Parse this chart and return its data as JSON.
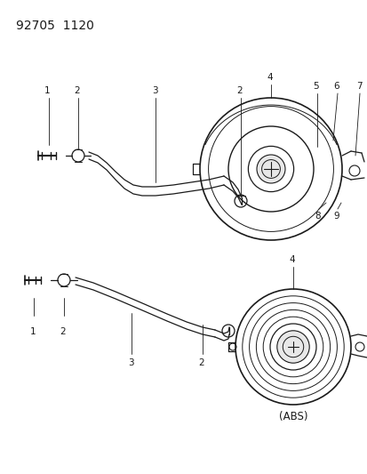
{
  "title_text": "92705  1120",
  "background_color": "#ffffff",
  "line_color": "#1a1a1a",
  "label_fontsize": 7.5,
  "title_fontsize": 10,
  "abs_label": "(ABS)"
}
